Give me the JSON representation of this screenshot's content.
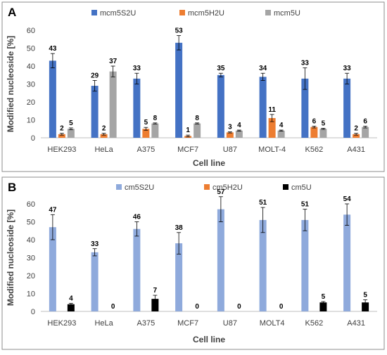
{
  "panels": [
    {
      "letter": "A",
      "chart_data": {
        "type": "bar",
        "categories": [
          "HEK293",
          "HeLa",
          "A375",
          "MCF7",
          "U87",
          "MOLT-4",
          "K562",
          "A431"
        ],
        "series": [
          {
            "name": "mcm5S2U",
            "color": "#4472c4",
            "values": [
              43,
              29,
              33,
              53,
              35,
              34,
              33,
              33
            ],
            "errors": [
              4,
              3,
              3,
              4,
              1,
              2,
              6,
              3
            ],
            "labels": [
              "43",
              "29",
              "33",
              "53",
              "35",
              "34",
              "33",
              "33"
            ]
          },
          {
            "name": "mcm5H2U",
            "color": "#ed7d31",
            "values": [
              2,
              2,
              5,
              1,
              3,
              11,
              6,
              2
            ],
            "errors": [
              0.5,
              0.5,
              0.8,
              0.5,
              0.3,
              2,
              0.5,
              0.5
            ],
            "labels": [
              "2",
              "2",
              "5",
              "1",
              "3",
              "11",
              "6",
              "2"
            ]
          },
          {
            "name": "mcm5U",
            "color": "#a5a5a5",
            "values": [
              5,
              37,
              8,
              8,
              4,
              4,
              5,
              6
            ],
            "errors": [
              0.5,
              3,
              0.3,
              0.3,
              0.3,
              0.3,
              0.3,
              0.5
            ],
            "labels": [
              "5",
              "37",
              "8",
              "8",
              "4",
              "4",
              "5",
              "6"
            ]
          }
        ],
        "ylim": [
          0,
          60
        ],
        "yticks": [
          0,
          10,
          20,
          30,
          40,
          50,
          60
        ],
        "xlabel": "Cell line",
        "ylabel": "Modified nucleoside [%]",
        "legend_position": "top",
        "grid": false
      }
    },
    {
      "letter": "B",
      "chart_data": {
        "type": "bar",
        "categories": [
          "HEK293",
          "HeLa",
          "A375",
          "MCF7",
          "U87",
          "MOLT4",
          "K562",
          "A431"
        ],
        "series": [
          {
            "name": "cm5S2U",
            "color": "#8faadc",
            "values": [
              47,
              33,
              46,
              38,
              57,
              51,
              51,
              54
            ],
            "errors": [
              7,
              2,
              4,
              6,
              7,
              7,
              6,
              6
            ],
            "labels": [
              "47",
              "33",
              "46",
              "38",
              "57",
              "51",
              "51",
              "54"
            ]
          },
          {
            "name": "cm5H2U",
            "color": "#ed7d31",
            "values": [
              0,
              0,
              0,
              0,
              0,
              0,
              0,
              0
            ],
            "errors": [
              0,
              0,
              0,
              0,
              0,
              0,
              0,
              0
            ],
            "labels": [
              "",
              "",
              "",
              "",
              "",
              "",
              "",
              ""
            ]
          },
          {
            "name": "cm5U",
            "color": "#000000",
            "values": [
              4,
              0,
              7,
              0,
              0,
              0,
              5,
              5
            ],
            "errors": [
              0.5,
              0,
              2,
              0,
              0,
              0,
              0.5,
              1.5
            ],
            "labels": [
              "4",
              "0",
              "7",
              "0",
              "0",
              "0",
              "5",
              "5"
            ]
          }
        ],
        "ylim": [
          0,
          60
        ],
        "yticks": [
          0,
          10,
          20,
          30,
          40,
          50,
          60
        ],
        "xlabel": "Cell line",
        "ylabel": "Modified nucleoside [%]",
        "legend_position": "top",
        "grid": false
      }
    }
  ]
}
